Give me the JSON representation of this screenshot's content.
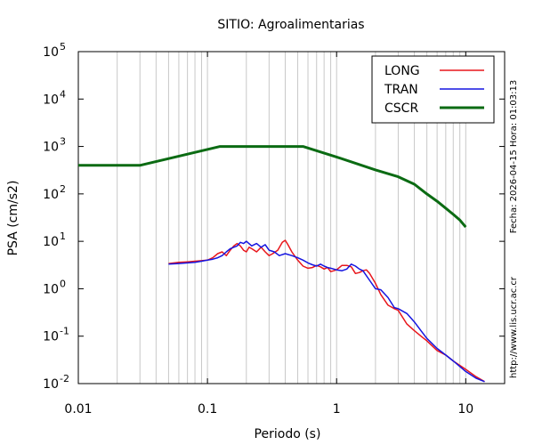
{
  "chart_data": {
    "type": "line",
    "title": "SITIO: Agroalimentarias",
    "xlabel": "Periodo (s)",
    "ylabel": "PSA (cm/s2)",
    "x_scale": "log",
    "y_scale": "log",
    "xlim": [
      0.01,
      20
    ],
    "ylim": [
      0.01,
      100000
    ],
    "grid": "vertical-minor",
    "legend_position": "top-right",
    "x_ticks": [
      {
        "value": 0.01,
        "label": "0.01"
      },
      {
        "value": 0.1,
        "label": "0.1"
      },
      {
        "value": 1,
        "label": "1"
      },
      {
        "value": 10,
        "label": "10"
      }
    ],
    "y_ticks": [
      {
        "value": 0.01,
        "base": "10",
        "exp": "-2"
      },
      {
        "value": 0.1,
        "base": "10",
        "exp": "-1"
      },
      {
        "value": 1,
        "base": "10",
        "exp": "0"
      },
      {
        "value": 10,
        "base": "10",
        "exp": "1"
      },
      {
        "value": 100,
        "base": "10",
        "exp": "2"
      },
      {
        "value": 1000,
        "base": "10",
        "exp": "3"
      },
      {
        "value": 10000,
        "base": "10",
        "exp": "4"
      },
      {
        "value": 100000,
        "base": "10",
        "exp": "5"
      }
    ],
    "series": [
      {
        "name": "LONG",
        "color": "#e8161c",
        "width": 1.5,
        "x": [
          0.05,
          0.06,
          0.07,
          0.08,
          0.09,
          0.1,
          0.11,
          0.12,
          0.13,
          0.14,
          0.15,
          0.16,
          0.17,
          0.18,
          0.19,
          0.2,
          0.21,
          0.22,
          0.24,
          0.26,
          0.28,
          0.3,
          0.32,
          0.35,
          0.38,
          0.4,
          0.42,
          0.45,
          0.5,
          0.55,
          0.6,
          0.65,
          0.7,
          0.75,
          0.8,
          0.85,
          0.9,
          0.95,
          1.0,
          1.1,
          1.2,
          1.3,
          1.4,
          1.5,
          1.6,
          1.7,
          1.8,
          2.0,
          2.2,
          2.5,
          2.8,
          3.0,
          3.5,
          4.0,
          4.5,
          5.0,
          6.0,
          7.0,
          8.0,
          10.0,
          12.0,
          14.0
        ],
        "y": [
          3.4,
          3.6,
          3.7,
          3.8,
          3.9,
          4.0,
          4.5,
          5.5,
          6.0,
          5.0,
          6.5,
          8.0,
          9.0,
          8.0,
          6.5,
          6.0,
          7.5,
          7.0,
          6.0,
          7.5,
          6.0,
          5.0,
          5.5,
          6.5,
          9.5,
          10.5,
          8.5,
          6.0,
          4.0,
          3.0,
          2.7,
          2.8,
          3.1,
          2.9,
          2.6,
          2.8,
          2.3,
          2.4,
          2.5,
          3.1,
          3.1,
          2.9,
          2.1,
          2.2,
          2.4,
          2.5,
          2.1,
          1.3,
          0.75,
          0.45,
          0.38,
          0.35,
          0.18,
          0.13,
          0.1,
          0.08,
          0.05,
          0.04,
          0.03,
          0.02,
          0.014,
          0.011
        ]
      },
      {
        "name": "TRAN",
        "color": "#1515e0",
        "width": 1.5,
        "x": [
          0.05,
          0.06,
          0.07,
          0.08,
          0.09,
          0.1,
          0.11,
          0.12,
          0.13,
          0.14,
          0.15,
          0.16,
          0.17,
          0.18,
          0.19,
          0.2,
          0.22,
          0.24,
          0.26,
          0.28,
          0.3,
          0.33,
          0.36,
          0.4,
          0.45,
          0.5,
          0.55,
          0.6,
          0.65,
          0.7,
          0.75,
          0.8,
          0.85,
          0.9,
          1.0,
          1.1,
          1.2,
          1.3,
          1.4,
          1.5,
          1.6,
          1.8,
          2.0,
          2.2,
          2.5,
          2.8,
          3.0,
          3.5,
          4.0,
          4.5,
          5.0,
          6.0,
          7.0,
          8.0,
          10.0,
          12.0,
          14.0
        ],
        "y": [
          3.3,
          3.4,
          3.5,
          3.6,
          3.8,
          4.0,
          4.2,
          4.5,
          5.0,
          6.0,
          7.0,
          7.5,
          8.0,
          9.5,
          9.0,
          10.0,
          8.0,
          9.0,
          7.5,
          8.5,
          6.5,
          6.0,
          5.0,
          5.5,
          5.0,
          4.5,
          4.0,
          3.5,
          3.2,
          3.0,
          3.3,
          3.0,
          2.8,
          2.7,
          2.5,
          2.4,
          2.6,
          3.3,
          3.0,
          2.6,
          2.4,
          1.5,
          1.0,
          0.95,
          0.65,
          0.4,
          0.38,
          0.3,
          0.2,
          0.13,
          0.09,
          0.055,
          0.04,
          0.03,
          0.018,
          0.013,
          0.011
        ]
      },
      {
        "name": "CSCR",
        "color": "#0b6b13",
        "width": 3,
        "x": [
          0.01,
          0.03,
          0.125,
          0.55,
          1.0,
          2.0,
          3.0,
          4.0,
          5.0,
          6.0,
          7.0,
          8.0,
          9.0,
          10.0
        ],
        "y": [
          400,
          400,
          1000,
          1000,
          600,
          320,
          230,
          160,
          100,
          70,
          50,
          37,
          28,
          20
        ]
      }
    ]
  },
  "side_texts": {
    "timestamp": "Fecha: 2026-04-15  Hora: 01:03:13",
    "url": "http://www.lis.ucr.ac.cr"
  }
}
